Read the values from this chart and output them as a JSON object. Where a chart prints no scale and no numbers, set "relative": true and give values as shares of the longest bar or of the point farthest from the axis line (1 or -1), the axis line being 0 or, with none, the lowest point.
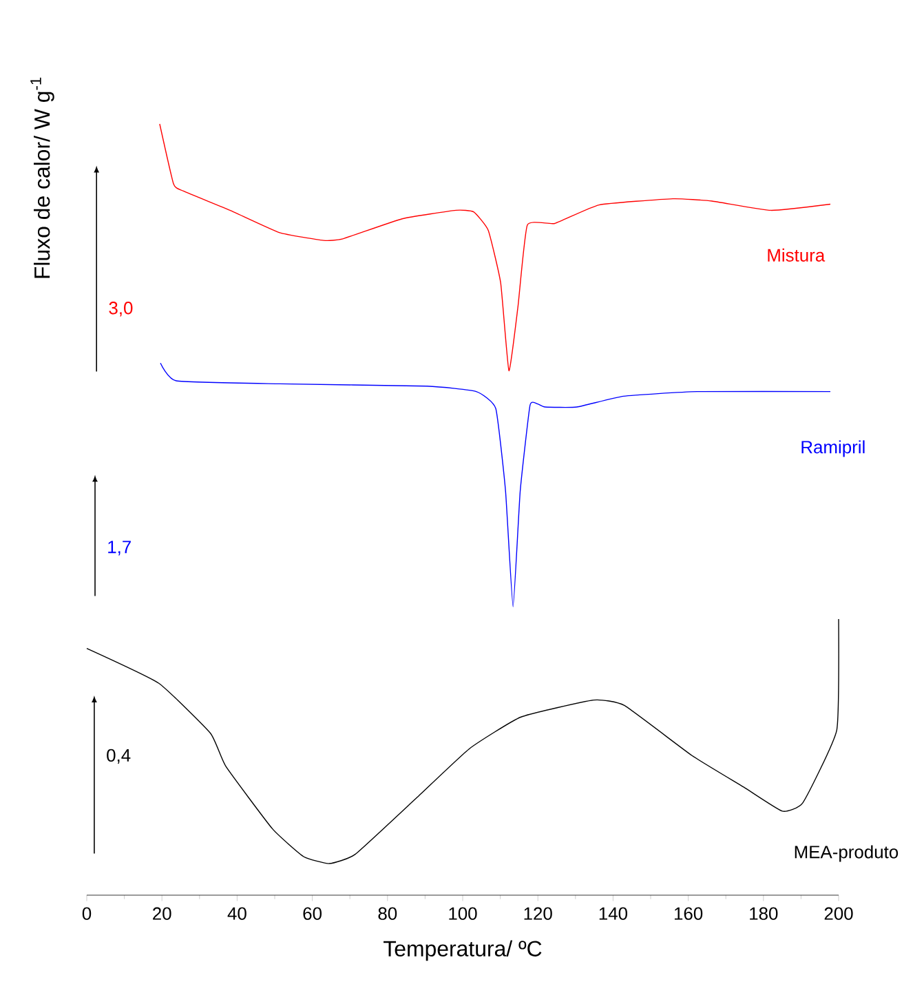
{
  "chart_data": {
    "type": "line",
    "relative": true,
    "xlabel": "Temperatura/ ºC",
    "ylabel": "Fluxo de calor/ W g$^{-1}$",
    "xlim": [
      0,
      200
    ],
    "xticks": [
      0,
      20,
      40,
      60,
      80,
      100,
      120,
      140,
      160,
      180,
      200
    ],
    "annotations": [
      "3,0",
      "1,7",
      "0,4"
    ],
    "series": [
      {
        "name": "Mistura",
        "color": "#ff0000",
        "x": [
          19.4,
          23.1,
          25.7,
          38.1,
          51.3,
          63,
          68.1,
          83.9,
          98.2,
          102.9,
          106.8,
          110.1,
          112.3,
          114.7,
          117.2,
          124.5,
          136.3,
          155.9,
          166.3,
          182,
          197.8
        ],
        "values": [
          1.0,
          0.922,
          0.913,
          0.888,
          0.859,
          0.849,
          0.851,
          0.877,
          0.888,
          0.886,
          0.862,
          0.794,
          0.68,
          0.763,
          0.869,
          0.871,
          0.895,
          0.903,
          0.9,
          0.888,
          0.896
        ]
      },
      {
        "name": "Ramipril",
        "color": "#0000ff",
        "x": [
          19.6,
          23.8,
          51.3,
          90.5,
          103.6,
          108.8,
          111.4,
          113.4,
          115.3,
          117.9,
          119.9,
          121.9,
          130.4,
          142.8,
          162.4,
          197.8
        ],
        "values": [
          0.69,
          0.667,
          0.663,
          0.66,
          0.653,
          0.631,
          0.524,
          0.374,
          0.524,
          0.635,
          0.637,
          0.633,
          0.633,
          0.647,
          0.653,
          0.653
        ]
      },
      {
        "name": "MEA-produto",
        "color": "#000000",
        "x": [
          0,
          19.1,
          32.9,
          37,
          49.4,
          57.7,
          64.5,
          71.4,
          87.9,
          101.8,
          115.5,
          134.8,
          143,
          161,
          174.8,
          185,
          190.5,
          199.5,
          200
        ],
        "values": [
          0.32,
          0.275,
          0.21,
          0.167,
          0.086,
          0.05,
          0.041,
          0.053,
          0.127,
          0.19,
          0.231,
          0.253,
          0.246,
          0.181,
          0.14,
          0.109,
          0.12,
          0.214,
          0.358
        ]
      }
    ]
  }
}
